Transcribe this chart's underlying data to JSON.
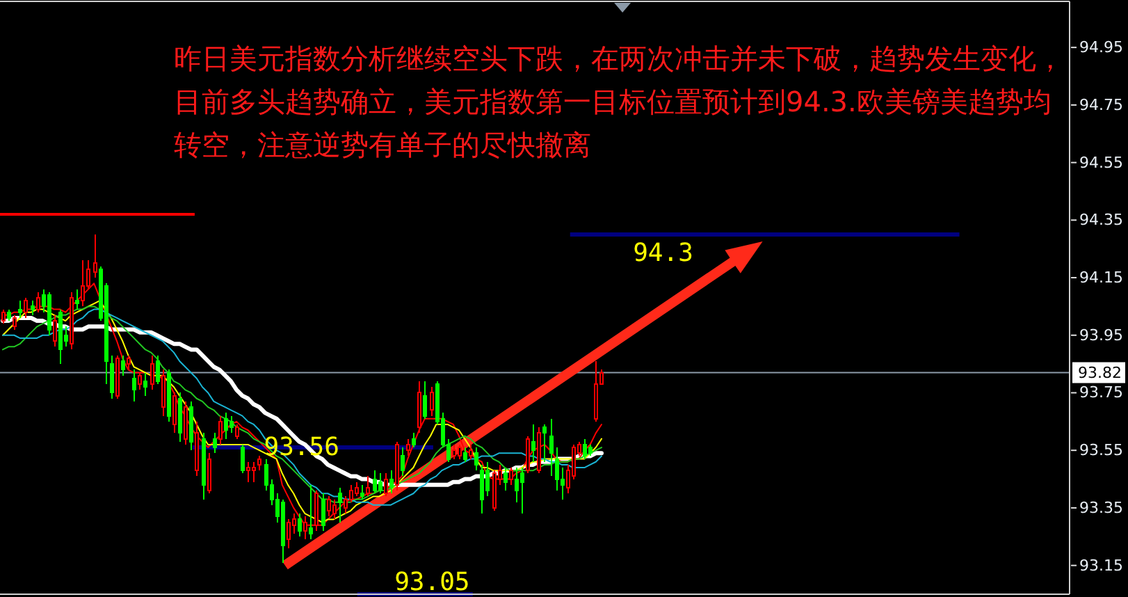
{
  "chart_data": {
    "type": "candlestick",
    "annotations": [
      "昨日美元指数分析继续空头下跌，在两次冲击并未下破，趋势发生变化，目前多头趋势确立，美元指数第一目标位置预计到94.3.欧美镑美趋势均转空，注意逆势有单子的尽快撤离"
    ],
    "categories": [
      null,
      null,
      null,
      null,
      null,
      null,
      null,
      null,
      null,
      null,
      null,
      null,
      null,
      null,
      null,
      null,
      null,
      null,
      null,
      null,
      null,
      null,
      null,
      null,
      null,
      null,
      null,
      null,
      null,
      null,
      null,
      null,
      null,
      null,
      null,
      null,
      null,
      null,
      null,
      null,
      null,
      null,
      null,
      null,
      null,
      null,
      null,
      null,
      null,
      null,
      null,
      null,
      null,
      null,
      null,
      null,
      null,
      null,
      null,
      null,
      null,
      null,
      null,
      null,
      null,
      null,
      null,
      null,
      null,
      null,
      null,
      null,
      null,
      null,
      null,
      null,
      null,
      null,
      null,
      null,
      null,
      null,
      null,
      null,
      null,
      null,
      null,
      null,
      null,
      null,
      null,
      null,
      null,
      null,
      null,
      null,
      null,
      null,
      null,
      null,
      null,
      null,
      null,
      null,
      null,
      null
    ],
    "ohlc": [
      [
        94.0,
        94.04,
        93.99,
        94.03
      ],
      [
        94.03,
        94.04,
        94.0,
        94.01
      ],
      [
        93.98,
        94.02,
        93.97,
        94.01
      ],
      [
        94.04,
        94.07,
        94.01,
        94.03
      ],
      [
        94.03,
        94.08,
        94.01,
        94.07
      ],
      [
        94.05,
        94.07,
        94.02,
        94.04
      ],
      [
        94.04,
        94.1,
        94.03,
        94.08
      ],
      [
        94.09,
        94.11,
        94.03,
        94.05
      ],
      [
        94.09,
        94.1,
        93.95,
        93.97
      ],
      [
        93.93,
        94.02,
        93.91,
        94.0
      ],
      [
        94.03,
        94.04,
        93.85,
        93.9
      ],
      [
        93.95,
        93.98,
        93.91,
        93.93
      ],
      [
        93.92,
        94.1,
        93.9,
        94.08
      ],
      [
        94.07,
        94.11,
        94.04,
        94.06
      ],
      [
        94.07,
        94.21,
        94.05,
        94.12
      ],
      [
        94.12,
        94.21,
        94.11,
        94.18
      ],
      [
        94.17,
        94.3,
        94.15,
        94.2
      ],
      [
        94.18,
        94.19,
        94.0,
        94.01
      ],
      [
        94.12,
        94.13,
        93.78,
        93.86
      ],
      [
        93.85,
        93.88,
        93.73,
        93.75
      ],
      [
        93.74,
        93.88,
        93.73,
        93.87
      ],
      [
        93.86,
        93.88,
        93.81,
        93.83
      ],
      [
        93.85,
        93.88,
        93.83,
        93.87
      ],
      [
        93.8,
        93.83,
        93.72,
        93.76
      ],
      [
        93.78,
        93.82,
        93.76,
        93.81
      ],
      [
        93.79,
        93.82,
        93.74,
        93.77
      ],
      [
        93.78,
        93.88,
        93.76,
        93.85
      ],
      [
        93.86,
        93.88,
        93.78,
        93.79
      ],
      [
        93.7,
        93.83,
        93.67,
        93.81
      ],
      [
        93.82,
        93.83,
        93.65,
        93.67
      ],
      [
        93.64,
        93.75,
        93.61,
        93.74
      ],
      [
        93.73,
        93.75,
        93.58,
        93.61
      ],
      [
        93.59,
        93.72,
        93.57,
        93.7
      ],
      [
        93.7,
        93.72,
        93.55,
        93.58
      ],
      [
        93.48,
        93.65,
        93.46,
        93.61
      ],
      [
        93.59,
        93.61,
        93.38,
        93.43
      ],
      [
        93.41,
        93.54,
        93.4,
        93.52
      ],
      [
        93.59,
        93.61,
        93.54,
        93.56
      ],
      [
        93.59,
        93.67,
        93.57,
        93.65
      ],
      [
        93.66,
        93.68,
        93.59,
        93.62
      ],
      [
        93.65,
        93.67,
        93.61,
        93.63
      ],
      [
        93.6,
        93.64,
        93.59,
        93.63
      ],
      [
        93.56,
        93.57,
        93.47,
        93.48
      ],
      [
        93.48,
        93.51,
        93.44,
        93.49
      ],
      [
        93.48,
        93.51,
        93.44,
        93.49
      ],
      [
        93.5,
        93.53,
        93.48,
        93.52
      ],
      [
        93.5,
        93.52,
        93.41,
        93.43
      ],
      [
        93.43,
        93.45,
        93.36,
        93.38
      ],
      [
        93.38,
        93.4,
        93.3,
        93.32
      ],
      [
        93.37,
        93.38,
        93.16,
        93.22
      ],
      [
        93.24,
        93.31,
        93.21,
        93.3
      ],
      [
        93.29,
        93.33,
        93.26,
        93.31
      ],
      [
        93.31,
        93.33,
        93.25,
        93.27
      ],
      [
        93.27,
        93.32,
        93.24,
        93.3
      ],
      [
        93.28,
        93.43,
        93.24,
        93.26
      ],
      [
        93.29,
        93.41,
        93.27,
        93.4
      ],
      [
        93.38,
        93.4,
        93.27,
        93.29
      ],
      [
        93.34,
        93.39,
        93.32,
        93.38
      ],
      [
        93.33,
        93.38,
        93.31,
        93.36
      ],
      [
        93.4,
        93.42,
        93.3,
        93.37
      ],
      [
        93.35,
        93.39,
        93.33,
        93.38
      ],
      [
        93.38,
        93.43,
        93.37,
        93.41
      ],
      [
        93.4,
        93.44,
        93.39,
        93.42
      ],
      [
        93.4,
        93.43,
        93.38,
        93.39
      ],
      [
        93.4,
        93.46,
        93.39,
        93.42
      ],
      [
        93.45,
        93.48,
        93.4,
        93.41
      ],
      [
        93.44,
        93.47,
        93.4,
        93.41
      ],
      [
        93.4,
        93.47,
        93.39,
        93.45
      ],
      [
        93.45,
        93.48,
        93.4,
        93.42
      ],
      [
        93.43,
        93.58,
        93.41,
        93.57
      ],
      [
        93.53,
        93.56,
        93.46,
        93.48
      ],
      [
        93.55,
        93.59,
        93.53,
        93.57
      ],
      [
        93.59,
        93.61,
        93.56,
        93.57
      ],
      [
        93.63,
        93.79,
        93.61,
        93.75
      ],
      [
        93.74,
        93.79,
        93.66,
        93.67
      ],
      [
        93.69,
        93.77,
        93.67,
        93.75
      ],
      [
        93.78,
        93.79,
        93.64,
        93.65
      ],
      [
        93.66,
        93.68,
        93.56,
        93.57
      ],
      [
        93.57,
        93.59,
        93.51,
        93.52
      ],
      [
        93.53,
        93.57,
        93.52,
        93.55
      ],
      [
        93.53,
        93.57,
        93.52,
        93.56
      ],
      [
        93.54,
        93.56,
        93.51,
        93.52
      ],
      [
        93.53,
        93.57,
        93.52,
        93.55
      ],
      [
        93.54,
        93.56,
        93.48,
        93.5
      ],
      [
        93.48,
        93.5,
        93.33,
        93.38
      ],
      [
        93.48,
        93.51,
        93.39,
        93.41
      ],
      [
        93.35,
        93.48,
        93.34,
        93.47
      ],
      [
        93.45,
        93.5,
        93.43,
        93.48
      ],
      [
        93.47,
        93.49,
        93.41,
        93.44
      ],
      [
        93.45,
        93.49,
        93.43,
        93.48
      ],
      [
        93.45,
        93.49,
        93.37,
        93.41
      ],
      [
        93.47,
        93.49,
        93.33,
        93.44
      ],
      [
        93.48,
        93.6,
        93.47,
        93.59
      ],
      [
        93.58,
        93.64,
        93.51,
        93.55
      ],
      [
        93.48,
        93.63,
        93.47,
        93.61
      ],
      [
        93.63,
        93.64,
        93.51,
        93.61
      ],
      [
        93.6,
        93.66,
        93.46,
        93.54
      ],
      [
        93.52,
        93.56,
        93.41,
        93.45
      ],
      [
        93.45,
        93.49,
        93.38,
        93.43
      ],
      [
        93.42,
        93.5,
        93.4,
        93.48
      ],
      [
        93.46,
        93.57,
        93.45,
        93.56
      ],
      [
        93.54,
        93.58,
        93.53,
        93.57
      ],
      [
        93.57,
        93.59,
        93.52,
        93.53
      ],
      [
        93.56,
        93.57,
        93.53,
        93.54
      ],
      [
        93.66,
        93.86,
        93.65,
        93.78
      ],
      [
        93.78,
        93.83,
        93.78,
        93.82
      ]
    ],
    "series": [
      {
        "type": "line",
        "color": "#ff0000",
        "values": [
          94.02,
          94.02,
          94.03,
          94.03,
          94.04,
          94.04,
          94.05,
          94.05,
          94.05,
          94.04,
          94.04,
          94.03,
          94.05,
          94.07,
          94.09,
          94.11,
          94.13,
          94.08,
          94.03,
          93.98,
          93.93,
          93.87,
          93.83,
          93.82,
          93.82,
          93.82,
          93.81,
          93.81,
          93.8,
          93.79,
          93.75,
          93.7,
          93.67,
          93.63,
          93.6,
          93.58,
          93.56,
          93.58,
          93.6,
          93.62,
          93.64,
          93.65,
          93.63,
          93.62,
          93.6,
          93.58,
          93.56,
          93.54,
          93.52,
          93.43,
          93.39,
          93.35,
          93.32,
          93.29,
          93.29,
          93.29,
          93.29,
          93.31,
          93.33,
          93.35,
          93.37,
          93.38,
          93.38,
          93.39,
          93.4,
          93.4,
          93.41,
          93.41,
          93.43,
          93.44,
          93.46,
          93.52,
          93.57,
          93.62,
          93.66,
          93.66,
          93.66,
          93.66,
          93.65,
          93.64,
          93.6,
          93.55,
          93.54,
          93.52,
          93.51,
          93.46,
          93.45,
          93.45,
          93.45,
          93.45,
          93.47,
          93.48,
          93.52,
          93.55,
          93.56,
          93.57,
          93.55,
          93.52,
          93.51,
          93.51,
          93.52,
          93.52,
          93.55,
          93.57,
          93.61,
          93.64
        ]
      },
      {
        "type": "line",
        "color": "#ffff00",
        "values": [
          93.95,
          93.97,
          93.99,
          94.01,
          94.03,
          94.03,
          94.04,
          94.04,
          94.03,
          94.02,
          94.01,
          94.0,
          94.02,
          94.03,
          94.04,
          94.05,
          94.06,
          94.07,
          94.04,
          94.01,
          93.97,
          93.93,
          93.88,
          93.84,
          93.83,
          93.82,
          93.81,
          93.81,
          93.81,
          93.79,
          93.77,
          93.74,
          93.71,
          93.68,
          93.64,
          93.6,
          93.57,
          93.57,
          93.57,
          93.57,
          93.57,
          93.57,
          93.57,
          93.57,
          93.56,
          93.55,
          93.54,
          93.53,
          93.52,
          93.47,
          93.43,
          93.4,
          93.36,
          93.33,
          93.32,
          93.31,
          93.3,
          93.31,
          93.31,
          93.32,
          93.33,
          93.34,
          93.36,
          93.37,
          93.38,
          93.39,
          93.39,
          93.4,
          93.41,
          93.43,
          93.45,
          93.47,
          93.49,
          93.53,
          93.57,
          93.6,
          93.64,
          93.64,
          93.64,
          93.63,
          93.62,
          93.59,
          93.56,
          93.52,
          93.49,
          93.49,
          93.48,
          93.48,
          93.48,
          93.48,
          93.48,
          93.49,
          93.5,
          93.51,
          93.51,
          93.52,
          93.52,
          93.52,
          93.52,
          93.52,
          93.52,
          93.52,
          93.52,
          93.54,
          93.56,
          93.59
        ]
      },
      {
        "type": "line",
        "color": "#22c822",
        "values": [
          93.9,
          93.91,
          93.91,
          93.92,
          93.94,
          93.96,
          93.98,
          93.99,
          94.0,
          94.01,
          94.02,
          94.02,
          94.03,
          94.04,
          94.04,
          94.05,
          94.05,
          94.04,
          94.03,
          94.01,
          94.0,
          93.98,
          93.96,
          93.94,
          93.92,
          93.9,
          93.89,
          93.87,
          93.84,
          93.82,
          93.79,
          93.78,
          93.76,
          93.75,
          93.73,
          93.72,
          93.7,
          93.69,
          93.67,
          93.66,
          93.65,
          93.63,
          93.62,
          93.61,
          93.59,
          93.58,
          93.57,
          93.55,
          93.53,
          93.52,
          93.5,
          93.48,
          93.46,
          93.44,
          93.42,
          93.4,
          93.38,
          93.38,
          93.37,
          93.37,
          93.37,
          93.37,
          93.38,
          93.38,
          93.39,
          93.4,
          93.41,
          93.41,
          93.42,
          93.43,
          93.44,
          93.45,
          93.46,
          93.47,
          93.49,
          93.51,
          93.54,
          93.56,
          93.57,
          93.58,
          93.59,
          93.6,
          93.59,
          93.57,
          93.56,
          93.54,
          93.52,
          93.51,
          93.49,
          93.48,
          93.48,
          93.48,
          93.48,
          93.48,
          93.49,
          93.5,
          93.5,
          93.51,
          93.51,
          93.51,
          93.52,
          93.52,
          93.53,
          93.54,
          93.55,
          93.56
        ]
      },
      {
        "type": "line",
        "color": "#1ab4d4",
        "values": [
          93.95,
          93.95,
          93.95,
          93.94,
          93.94,
          93.94,
          93.94,
          93.95,
          93.95,
          93.96,
          93.97,
          93.97,
          93.98,
          94.0,
          94.01,
          94.03,
          94.04,
          94.04,
          94.03,
          94.02,
          94.01,
          94.0,
          93.99,
          93.98,
          93.97,
          93.96,
          93.95,
          93.94,
          93.93,
          93.91,
          93.89,
          93.86,
          93.84,
          93.82,
          93.8,
          93.77,
          93.75,
          93.72,
          93.71,
          93.7,
          93.69,
          93.68,
          93.67,
          93.65,
          93.64,
          93.62,
          93.59,
          93.57,
          93.55,
          93.54,
          93.52,
          93.5,
          93.47,
          93.45,
          93.43,
          93.42,
          93.4,
          93.4,
          93.39,
          93.39,
          93.38,
          93.38,
          93.37,
          93.37,
          93.37,
          93.36,
          93.36,
          93.36,
          93.36,
          93.37,
          93.38,
          93.39,
          93.4,
          93.42,
          93.43,
          93.45,
          93.46,
          93.48,
          93.49,
          93.5,
          93.5,
          93.51,
          93.52,
          93.52,
          93.53,
          93.53,
          93.53,
          93.54,
          93.54,
          93.54,
          93.54,
          93.54,
          93.53,
          93.53,
          93.52,
          93.52,
          93.51,
          93.51,
          93.5,
          93.5,
          93.49,
          93.49,
          93.49,
          93.5,
          93.51,
          93.53
        ]
      },
      {
        "type": "line",
        "color": "#ffffff",
        "values": [
          94.0,
          94.0,
          94.01,
          94.01,
          94.01,
          94.01,
          94.0,
          94.0,
          93.99,
          93.99,
          93.98,
          93.98,
          93.97,
          93.97,
          93.97,
          93.98,
          93.98,
          93.98,
          93.98,
          93.97,
          93.97,
          93.97,
          93.97,
          93.97,
          93.96,
          93.96,
          93.96,
          93.95,
          93.94,
          93.93,
          93.92,
          93.92,
          93.91,
          93.9,
          93.9,
          93.88,
          93.86,
          93.84,
          93.83,
          93.81,
          93.79,
          93.76,
          93.74,
          93.73,
          93.71,
          93.7,
          93.68,
          93.67,
          93.66,
          93.64,
          93.62,
          93.6,
          93.58,
          93.57,
          93.55,
          93.53,
          93.52,
          93.5,
          93.49,
          93.48,
          93.47,
          93.46,
          93.46,
          93.45,
          93.45,
          93.44,
          93.44,
          93.43,
          93.43,
          93.43,
          93.43,
          93.43,
          93.43,
          93.43,
          93.43,
          93.43,
          93.43,
          93.43,
          93.43,
          93.44,
          93.44,
          93.45,
          93.45,
          93.46,
          93.46,
          93.46,
          93.47,
          93.47,
          93.48,
          93.48,
          93.49,
          93.49,
          93.5,
          93.5,
          93.51,
          93.51,
          93.51,
          93.52,
          93.52,
          93.52,
          93.52,
          93.53,
          93.53,
          93.53,
          93.54,
          93.54
        ]
      }
    ],
    "ylim": [
      93.05,
      95.11
    ],
    "yticks": [
      93.15,
      93.35,
      93.55,
      93.75,
      93.95,
      94.15,
      94.35,
      94.55,
      94.75,
      94.95
    ],
    "ref_lines": [
      {
        "axis": "y",
        "value": 93.82,
        "label": "93.82",
        "color": "#8c9aa8"
      },
      {
        "axis": "y",
        "value": 94.3,
        "label": "94.3",
        "color": "#000080"
      },
      {
        "axis": "y",
        "value": 93.56,
        "label": "93.56",
        "color": "#000080"
      },
      {
        "axis": "y",
        "value": 93.05,
        "label": "93.05",
        "color": "#000080"
      },
      {
        "axis": "y",
        "value": 94.37,
        "color": "#ff0000"
      }
    ],
    "tick_labels": "y"
  }
}
